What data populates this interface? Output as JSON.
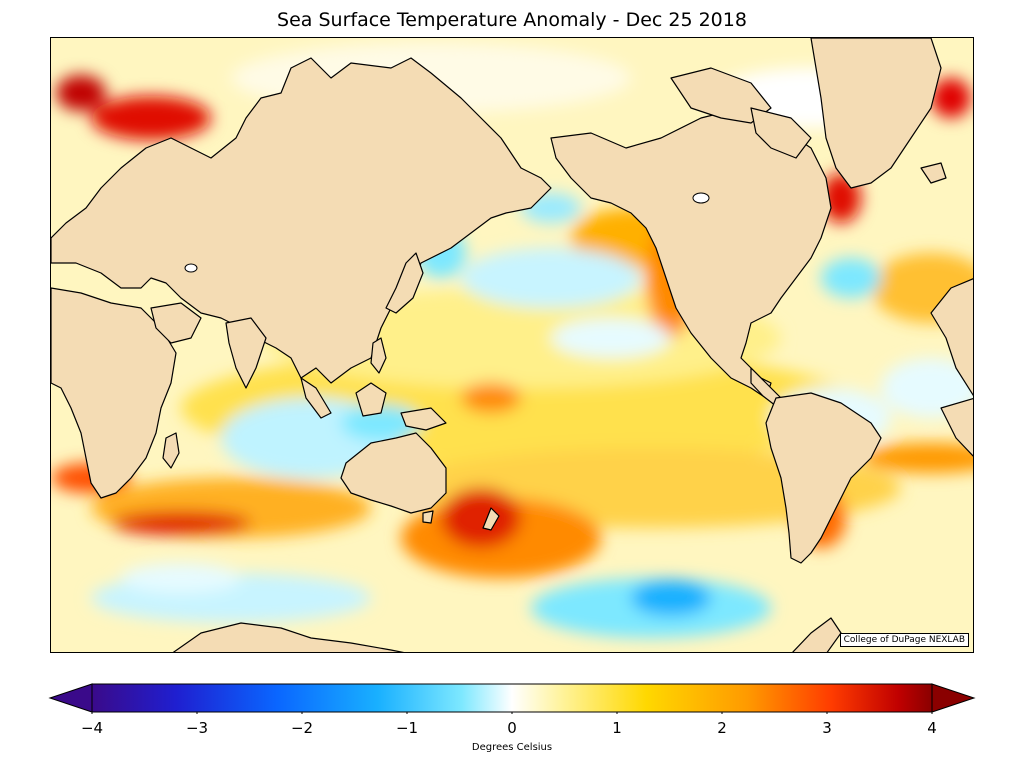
{
  "title": "Sea Surface Temperature Anomaly - Dec 25 2018",
  "credit": "College of DuPage NEXLAB",
  "colorbar": {
    "label": "Degrees Celsius",
    "ticks": [
      "−4",
      "−3",
      "−2",
      "−1",
      "0",
      "1",
      "2",
      "3",
      "4"
    ],
    "range": [
      -4,
      4
    ],
    "extend": "both",
    "colors": [
      "#3a0a8a",
      "#1f1fd0",
      "#0a66ff",
      "#19b0ff",
      "#7de8ff",
      "#ffffff",
      "#fff39a",
      "#ffd800",
      "#ff9a00",
      "#ff3c00",
      "#c00000",
      "#8a0000"
    ]
  },
  "map": {
    "land_color": "#f4dcb4",
    "coast_color": "#000000",
    "projection": "mercator",
    "center": "pacific"
  }
}
